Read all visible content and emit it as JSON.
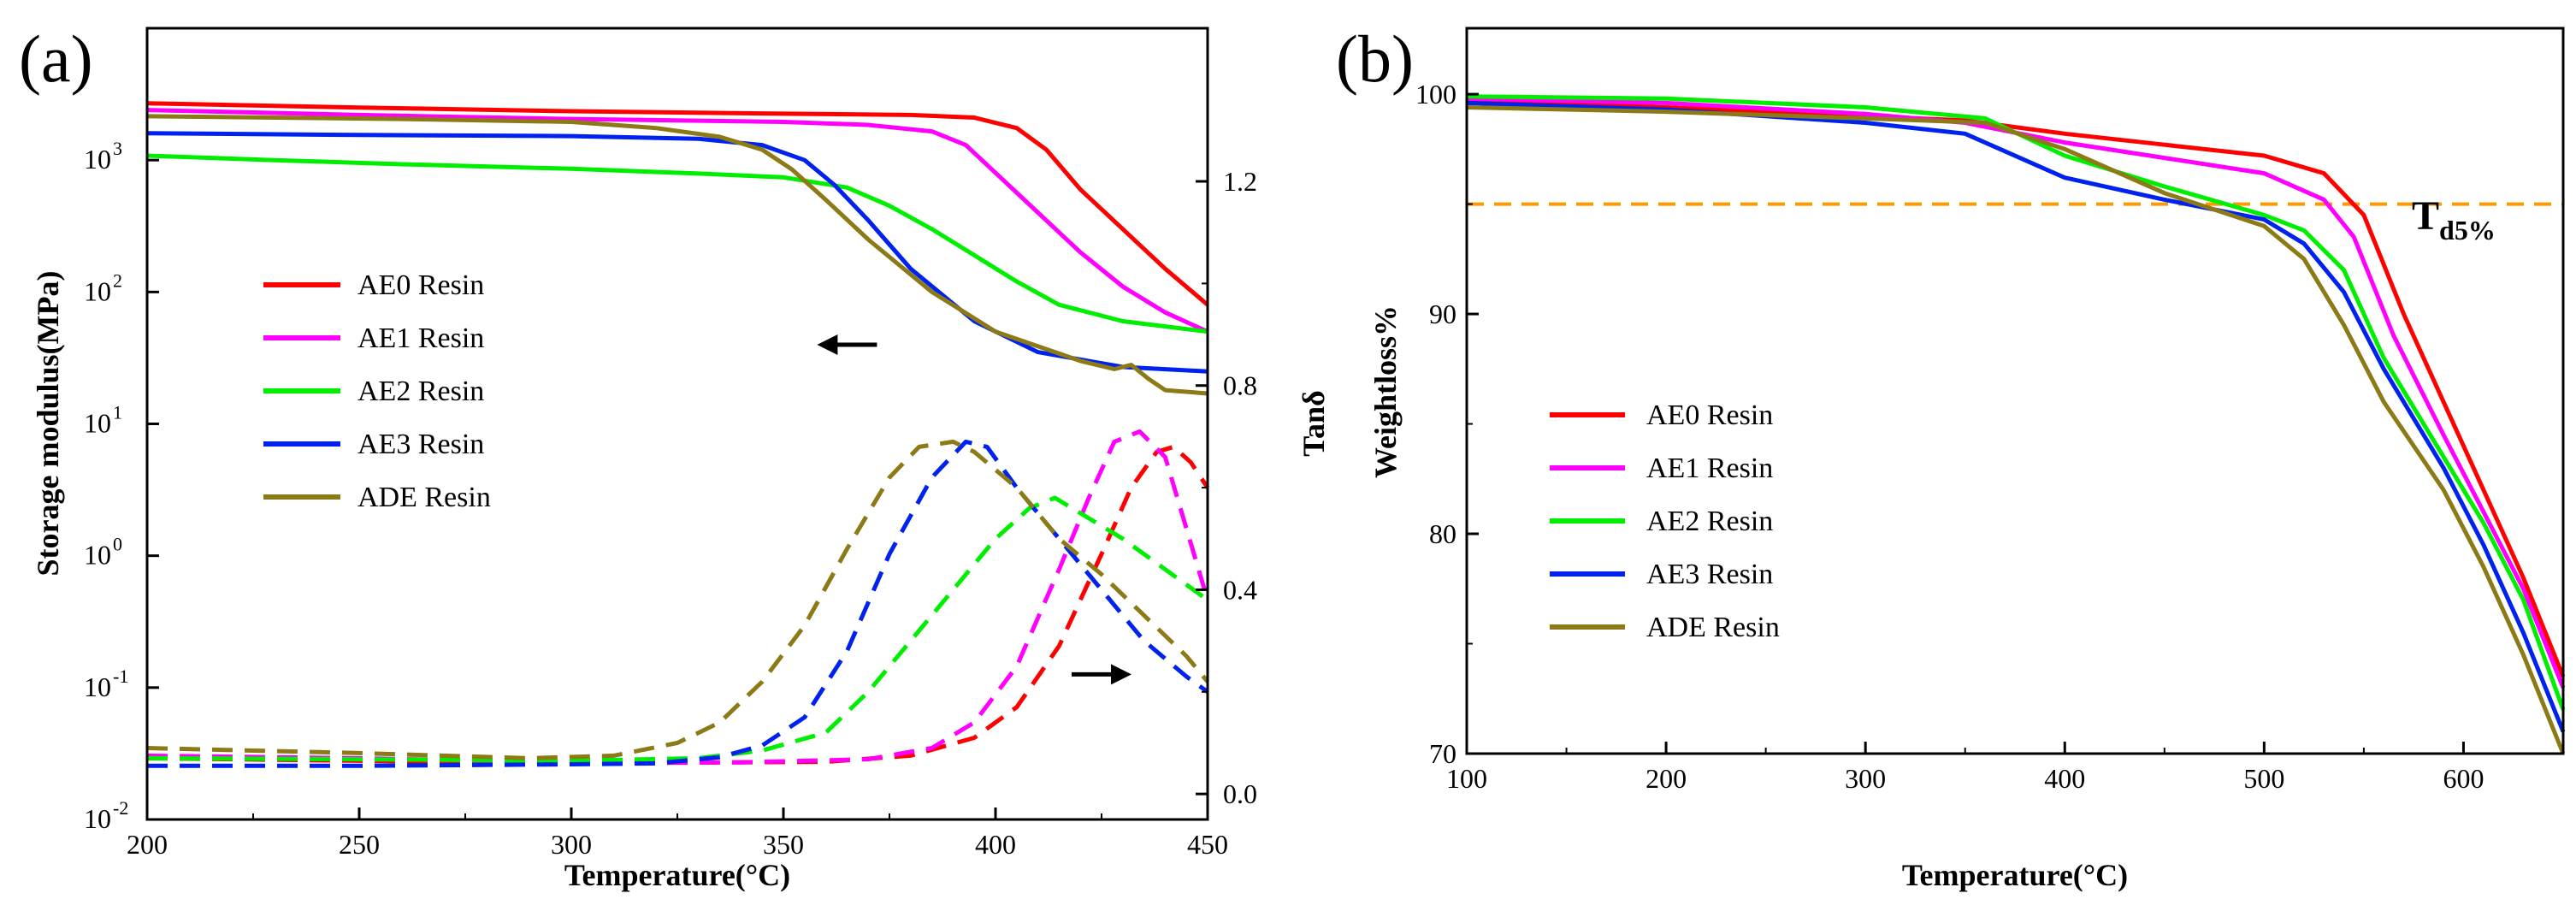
{
  "figure": {
    "colors": {
      "AE0": "#ff0000",
      "AE1": "#ff00ff",
      "AE2": "#00ee00",
      "AE3": "#0022ee",
      "ADE": "#8c7a17",
      "threshold": "#ff9900"
    }
  },
  "chart_data": [
    {
      "panel": "(a)",
      "type": "line",
      "xlabel": "Temperature(°C)",
      "ylabel_left": "Storage modulus(MPa)",
      "ylabel_right": "Tanδ",
      "xlim": [
        200,
        450
      ],
      "ylim_left_log10": [
        -2,
        4
      ],
      "ylim_right": [
        -0.05,
        1.5
      ],
      "x_ticks": [
        "200",
        "250",
        "300",
        "350",
        "400",
        "450"
      ],
      "y_ticks_left": [
        "10",
        "10",
        "10",
        "10",
        "10",
        "10"
      ],
      "y_ticks_left_exp": [
        "-2",
        "-1",
        "0",
        "1",
        "2",
        "3"
      ],
      "y_ticks_right": [
        "0.0",
        "0.4",
        "0.8",
        "1.2"
      ],
      "arrows": [
        {
          "direction": "left",
          "points_to": "storage modulus axis",
          "x": 365,
          "y_log10": 1.6
        },
        {
          "direction": "right",
          "points_to": "Tanδ axis",
          "x": 425,
          "y_log10": -0.9
        }
      ],
      "legend": [
        "AE0 Resin",
        "AE1 Resin",
        "AE2 Resin",
        "AE3 Resin",
        "ADE Resin"
      ],
      "series": [
        {
          "name": "AE0 Resin",
          "key": "AE0",
          "axis": "left",
          "style": "solid",
          "points": [
            [
              200,
              2700
            ],
            [
              250,
              2500
            ],
            [
              300,
              2350
            ],
            [
              350,
              2250
            ],
            [
              380,
              2200
            ],
            [
              395,
              2100
            ],
            [
              405,
              1750
            ],
            [
              412,
              1200
            ],
            [
              420,
              600
            ],
            [
              430,
              300
            ],
            [
              440,
              150
            ],
            [
              450,
              80
            ]
          ]
        },
        {
          "name": "AE1 Resin",
          "key": "AE1",
          "axis": "left",
          "style": "solid",
          "points": [
            [
              200,
              2400
            ],
            [
              250,
              2200
            ],
            [
              300,
              2050
            ],
            [
              350,
              1950
            ],
            [
              370,
              1850
            ],
            [
              385,
              1650
            ],
            [
              393,
              1300
            ],
            [
              400,
              800
            ],
            [
              410,
              400
            ],
            [
              420,
              200
            ],
            [
              430,
              110
            ],
            [
              440,
              70
            ],
            [
              450,
              50
            ]
          ]
        },
        {
          "name": "AE2 Resin",
          "key": "AE2",
          "axis": "left",
          "style": "solid",
          "points": [
            [
              200,
              1080
            ],
            [
              230,
              1000
            ],
            [
              260,
              930
            ],
            [
              300,
              860
            ],
            [
              330,
              790
            ],
            [
              350,
              740
            ],
            [
              365,
              620
            ],
            [
              375,
              450
            ],
            [
              385,
              300
            ],
            [
              395,
              190
            ],
            [
              405,
              120
            ],
            [
              415,
              80
            ],
            [
              430,
              60
            ],
            [
              450,
              50
            ]
          ]
        },
        {
          "name": "AE3 Resin",
          "key": "AE3",
          "axis": "left",
          "style": "solid",
          "points": [
            [
              200,
              1600
            ],
            [
              250,
              1550
            ],
            [
              300,
              1520
            ],
            [
              330,
              1450
            ],
            [
              345,
              1300
            ],
            [
              355,
              1000
            ],
            [
              362,
              650
            ],
            [
              370,
              350
            ],
            [
              380,
              150
            ],
            [
              395,
              60
            ],
            [
              410,
              35
            ],
            [
              430,
              27
            ],
            [
              450,
              25
            ]
          ]
        },
        {
          "name": "ADE Resin",
          "key": "ADE",
          "axis": "left",
          "style": "solid",
          "points": [
            [
              200,
              2150
            ],
            [
              230,
              2100
            ],
            [
              260,
              2050
            ],
            [
              300,
              1950
            ],
            [
              320,
              1750
            ],
            [
              335,
              1500
            ],
            [
              345,
              1200
            ],
            [
              352,
              850
            ],
            [
              360,
              500
            ],
            [
              370,
              250
            ],
            [
              385,
              100
            ],
            [
              400,
              50
            ],
            [
              420,
              30
            ],
            [
              428,
              26
            ],
            [
              432,
              28
            ],
            [
              436,
              22
            ],
            [
              440,
              18
            ],
            [
              450,
              17
            ]
          ]
        },
        {
          "name": "AE0 Resin",
          "key": "AE0",
          "axis": "right",
          "style": "dashed",
          "points": [
            [
              200,
              0.07
            ],
            [
              250,
              0.065
            ],
            [
              300,
              0.06
            ],
            [
              360,
              0.063
            ],
            [
              380,
              0.075
            ],
            [
              395,
              0.11
            ],
            [
              405,
              0.17
            ],
            [
              415,
              0.29
            ],
            [
              425,
              0.47
            ],
            [
              432,
              0.6
            ],
            [
              438,
              0.67
            ],
            [
              442,
              0.68
            ],
            [
              446,
              0.65
            ],
            [
              450,
              0.6
            ]
          ]
        },
        {
          "name": "AE1 Resin",
          "key": "AE1",
          "axis": "right",
          "style": "dashed",
          "points": [
            [
              200,
              0.075
            ],
            [
              250,
              0.07
            ],
            [
              300,
              0.062
            ],
            [
              340,
              0.062
            ],
            [
              370,
              0.068
            ],
            [
              385,
              0.09
            ],
            [
              395,
              0.14
            ],
            [
              405,
              0.25
            ],
            [
              415,
              0.44
            ],
            [
              422,
              0.58
            ],
            [
              428,
              0.69
            ],
            [
              434,
              0.71
            ],
            [
              440,
              0.66
            ],
            [
              445,
              0.52
            ],
            [
              450,
              0.38
            ]
          ]
        },
        {
          "name": "AE2 Resin",
          "key": "AE2",
          "axis": "right",
          "style": "dashed",
          "points": [
            [
              200,
              0.07
            ],
            [
              250,
              0.068
            ],
            [
              300,
              0.065
            ],
            [
              330,
              0.07
            ],
            [
              345,
              0.085
            ],
            [
              360,
              0.12
            ],
            [
              370,
              0.2
            ],
            [
              380,
              0.3
            ],
            [
              390,
              0.4
            ],
            [
              400,
              0.5
            ],
            [
              408,
              0.56
            ],
            [
              414,
              0.58
            ],
            [
              420,
              0.55
            ],
            [
              430,
              0.5
            ],
            [
              440,
              0.44
            ],
            [
              450,
              0.38
            ]
          ]
        },
        {
          "name": "AE3 Resin",
          "key": "AE3",
          "axis": "right",
          "style": "dashed",
          "points": [
            [
              200,
              0.055
            ],
            [
              250,
              0.055
            ],
            [
              300,
              0.058
            ],
            [
              320,
              0.06
            ],
            [
              335,
              0.072
            ],
            [
              345,
              0.095
            ],
            [
              355,
              0.15
            ],
            [
              365,
              0.28
            ],
            [
              375,
              0.47
            ],
            [
              385,
              0.62
            ],
            [
              393,
              0.69
            ],
            [
              398,
              0.68
            ],
            [
              405,
              0.6
            ],
            [
              415,
              0.5
            ],
            [
              425,
              0.4
            ],
            [
              435,
              0.3
            ],
            [
              445,
              0.23
            ],
            [
              450,
              0.2
            ]
          ]
        },
        {
          "name": "ADE Resin",
          "key": "ADE",
          "axis": "right",
          "style": "dashed",
          "points": [
            [
              200,
              0.09
            ],
            [
              250,
              0.08
            ],
            [
              290,
              0.07
            ],
            [
              310,
              0.075
            ],
            [
              325,
              0.1
            ],
            [
              335,
              0.14
            ],
            [
              345,
              0.22
            ],
            [
              355,
              0.33
            ],
            [
              365,
              0.48
            ],
            [
              375,
              0.62
            ],
            [
              382,
              0.68
            ],
            [
              390,
              0.69
            ],
            [
              395,
              0.67
            ],
            [
              405,
              0.6
            ],
            [
              415,
              0.5
            ],
            [
              425,
              0.43
            ],
            [
              435,
              0.35
            ],
            [
              445,
              0.27
            ],
            [
              450,
              0.22
            ]
          ]
        }
      ]
    },
    {
      "panel": "(b)",
      "type": "line",
      "xlabel": "Temperature(°C)",
      "ylabel": "Weightloss%",
      "xlim": [
        100,
        650
      ],
      "ylim": [
        70,
        103
      ],
      "x_ticks": [
        "100",
        "200",
        "300",
        "400",
        "500",
        "600"
      ],
      "y_ticks": [
        "70",
        "80",
        "90",
        "100"
      ],
      "threshold": {
        "value": 95,
        "label": "T",
        "label_sub": "d5%"
      },
      "legend": [
        "AE0 Resin",
        "AE1 Resin",
        "AE2 Resin",
        "AE3 Resin",
        "ADE Resin"
      ],
      "series": [
        {
          "name": "AE0 Resin",
          "key": "AE0",
          "points": [
            [
              100,
              99.7
            ],
            [
              200,
              99.4
            ],
            [
              300,
              99.0
            ],
            [
              350,
              98.8
            ],
            [
              400,
              98.2
            ],
            [
              450,
              97.7
            ],
            [
              500,
              97.2
            ],
            [
              530,
              96.4
            ],
            [
              550,
              94.5
            ],
            [
              570,
              90.0
            ],
            [
              590,
              86.0
            ],
            [
              610,
              82.0
            ],
            [
              630,
              78.0
            ],
            [
              650,
              73.5
            ]
          ]
        },
        {
          "name": "AE1 Resin",
          "key": "AE1",
          "points": [
            [
              100,
              99.8
            ],
            [
              200,
              99.6
            ],
            [
              300,
              99.1
            ],
            [
              350,
              98.7
            ],
            [
              400,
              97.8
            ],
            [
              450,
              97.1
            ],
            [
              500,
              96.4
            ],
            [
              530,
              95.2
            ],
            [
              545,
              93.5
            ],
            [
              565,
              89.0
            ],
            [
              590,
              84.5
            ],
            [
              610,
              81.0
            ],
            [
              630,
              77.5
            ],
            [
              650,
              73.0
            ]
          ]
        },
        {
          "name": "AE2 Resin",
          "key": "AE2",
          "points": [
            [
              100,
              99.9
            ],
            [
              200,
              99.8
            ],
            [
              300,
              99.4
            ],
            [
              360,
              98.9
            ],
            [
              400,
              97.2
            ],
            [
              450,
              95.8
            ],
            [
              500,
              94.5
            ],
            [
              520,
              93.8
            ],
            [
              540,
              92.0
            ],
            [
              560,
              88.0
            ],
            [
              590,
              83.5
            ],
            [
              610,
              80.5
            ],
            [
              630,
              77.0
            ],
            [
              650,
              72.0
            ]
          ]
        },
        {
          "name": "AE3 Resin",
          "key": "AE3",
          "points": [
            [
              100,
              99.6
            ],
            [
              200,
              99.3
            ],
            [
              300,
              98.7
            ],
            [
              350,
              98.2
            ],
            [
              400,
              96.2
            ],
            [
              450,
              95.2
            ],
            [
              500,
              94.3
            ],
            [
              520,
              93.2
            ],
            [
              540,
              91.0
            ],
            [
              560,
              87.5
            ],
            [
              590,
              83.0
            ],
            [
              610,
              79.5
            ],
            [
              630,
              75.5
            ],
            [
              650,
              71.0
            ]
          ]
        },
        {
          "name": "ADE Resin",
          "key": "ADE",
          "points": [
            [
              100,
              99.4
            ],
            [
              200,
              99.2
            ],
            [
              300,
              98.9
            ],
            [
              360,
              98.7
            ],
            [
              400,
              97.5
            ],
            [
              450,
              95.5
            ],
            [
              500,
              94.0
            ],
            [
              520,
              92.5
            ],
            [
              540,
              89.5
            ],
            [
              560,
              86.0
            ],
            [
              590,
              82.0
            ],
            [
              610,
              78.5
            ],
            [
              630,
              74.5
            ],
            [
              650,
              70.0
            ]
          ]
        }
      ]
    }
  ]
}
